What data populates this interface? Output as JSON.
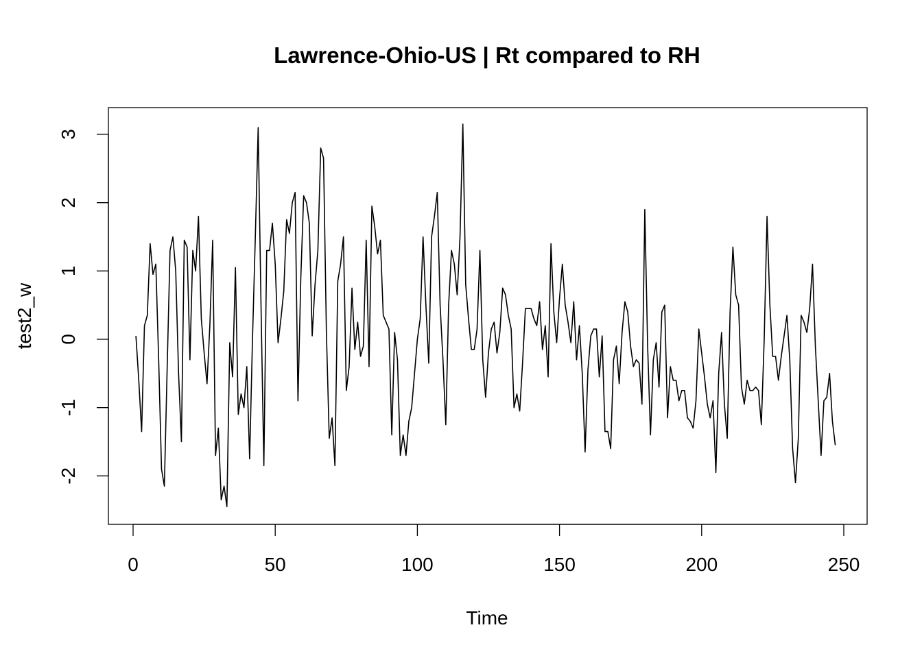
{
  "chart_data": {
    "type": "line",
    "title": "Lawrence-Ohio-US | Rt compared to RH",
    "xlabel": "Time",
    "ylabel": "test2_w",
    "xlim": [
      0,
      250
    ],
    "ylim": [
      -2.5,
      3.2
    ],
    "grid": false,
    "x_ticks": [
      0,
      50,
      100,
      150,
      200,
      250
    ],
    "x_tick_labels": [
      "0",
      "50",
      "100",
      "150",
      "200",
      "250"
    ],
    "y_ticks": [
      -2,
      -1,
      0,
      1,
      2,
      3
    ],
    "y_tick_labels": [
      "-2",
      "-1",
      "0",
      "1",
      "2",
      "3"
    ],
    "x_start": 1,
    "values": [
      0.05,
      -0.6,
      -1.35,
      0.2,
      0.35,
      1.4,
      0.95,
      1.1,
      -0.3,
      -1.9,
      -2.15,
      -0.4,
      1.3,
      1.5,
      1.0,
      -0.5,
      -1.5,
      1.45,
      1.35,
      -0.3,
      1.3,
      1.0,
      1.8,
      0.3,
      -0.2,
      -0.65,
      0.2,
      1.45,
      -1.7,
      -1.3,
      -2.35,
      -2.15,
      -2.45,
      -0.05,
      -0.55,
      1.05,
      -1.1,
      -0.8,
      -1.0,
      -0.4,
      -1.75,
      0.0,
      1.5,
      3.1,
      0.5,
      -1.85,
      1.3,
      1.3,
      1.7,
      1.1,
      -0.05,
      0.3,
      0.7,
      1.75,
      1.55,
      2.0,
      2.15,
      -0.9,
      0.9,
      2.1,
      2.0,
      1.7,
      0.05,
      0.8,
      1.3,
      2.8,
      2.65,
      0.1,
      -1.45,
      -1.15,
      -1.85,
      0.85,
      1.1,
      1.5,
      -0.75,
      -0.4,
      0.75,
      -0.15,
      0.25,
      -0.25,
      -0.1,
      1.45,
      -0.4,
      1.95,
      1.65,
      1.25,
      1.45,
      0.35,
      0.25,
      0.15,
      -1.4,
      0.1,
      -0.3,
      -1.7,
      -1.4,
      -1.7,
      -1.2,
      -1.0,
      -0.5,
      0.0,
      0.3,
      1.5,
      0.5,
      -0.35,
      1.5,
      1.8,
      2.15,
      0.5,
      -0.3,
      -1.25,
      0.5,
      1.3,
      1.1,
      0.65,
      1.5,
      3.15,
      0.8,
      0.3,
      -0.15,
      -0.15,
      0.15,
      1.3,
      -0.3,
      -0.85,
      -0.2,
      0.15,
      0.25,
      -0.2,
      0.1,
      0.75,
      0.65,
      0.35,
      0.15,
      -1.0,
      -0.8,
      -1.05,
      -0.35,
      0.45,
      0.45,
      0.45,
      0.3,
      0.2,
      0.55,
      -0.15,
      0.2,
      -0.55,
      1.4,
      0.4,
      -0.05,
      0.6,
      1.1,
      0.5,
      0.25,
      -0.05,
      0.55,
      -0.3,
      0.2,
      -0.5,
      -1.65,
      -0.45,
      0.05,
      0.15,
      0.15,
      -0.55,
      0.05,
      -1.35,
      -1.35,
      -1.6,
      -0.3,
      -0.1,
      -0.65,
      0.1,
      0.55,
      0.4,
      -0.1,
      -0.4,
      -0.3,
      -0.35,
      -0.95,
      1.9,
      -0.1,
      -1.4,
      -0.3,
      -0.05,
      -0.7,
      0.4,
      0.5,
      -1.15,
      -0.4,
      -0.6,
      -0.6,
      -0.9,
      -0.75,
      -0.75,
      -1.15,
      -1.2,
      -1.3,
      -0.9,
      0.15,
      -0.2,
      -0.55,
      -0.95,
      -1.15,
      -0.9,
      -1.95,
      -0.5,
      0.1,
      -0.95,
      -1.45,
      0.4,
      1.35,
      0.65,
      0.5,
      -0.7,
      -0.95,
      -0.6,
      -0.75,
      -0.75,
      -0.7,
      -0.75,
      -1.25,
      0.0,
      1.8,
      0.5,
      -0.25,
      -0.25,
      -0.6,
      -0.25,
      0.05,
      0.35,
      -0.3,
      -1.6,
      -2.1,
      -1.45,
      0.35,
      0.25,
      0.1,
      0.45,
      1.1,
      -0.1,
      -0.9,
      -1.7,
      -0.9,
      -0.85,
      -0.5,
      -1.2,
      -1.55
    ]
  }
}
